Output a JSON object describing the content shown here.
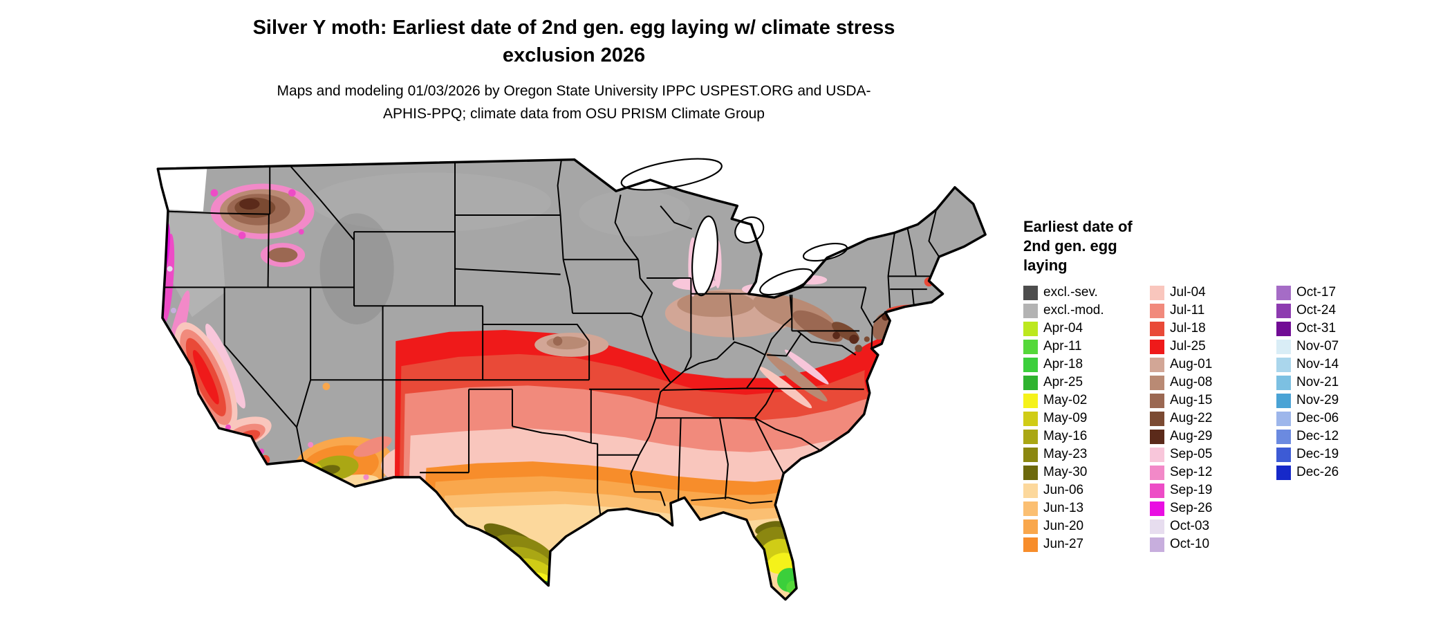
{
  "page": {
    "title": "Silver Y moth: Earliest date of 2nd gen. egg laying w/ climate stress exclusion 2026",
    "subtitle": "Maps and modeling 01/03/2026 by Oregon State University IPPC USPEST.ORG and USDA-APHIS-PPQ; climate data from OSU PRISM Climate Group"
  },
  "legend": {
    "title": "Earliest date of 2nd gen. egg laying",
    "columns": [
      [
        {
          "label": "excl.-sev.",
          "color": "excl_sev"
        },
        {
          "label": "excl.-mod.",
          "color": "excl_mod"
        },
        {
          "label": "Apr-04",
          "color": "apr04"
        },
        {
          "label": "Apr-11",
          "color": "apr11"
        },
        {
          "label": "Apr-18",
          "color": "apr18"
        },
        {
          "label": "Apr-25",
          "color": "apr25"
        },
        {
          "label": "May-02",
          "color": "may02"
        },
        {
          "label": "May-09",
          "color": "may09"
        },
        {
          "label": "May-16",
          "color": "may16"
        },
        {
          "label": "May-23",
          "color": "may23"
        },
        {
          "label": "May-30",
          "color": "may30"
        },
        {
          "label": "Jun-06",
          "color": "jun06"
        },
        {
          "label": "Jun-13",
          "color": "jun13"
        },
        {
          "label": "Jun-20",
          "color": "jun20"
        },
        {
          "label": "Jun-27",
          "color": "jun27"
        }
      ],
      [
        {
          "label": "Jul-04",
          "color": "jul04"
        },
        {
          "label": "Jul-11",
          "color": "jul11"
        },
        {
          "label": "Jul-18",
          "color": "jul18"
        },
        {
          "label": "Jul-25",
          "color": "jul25"
        },
        {
          "label": "Aug-01",
          "color": "aug01"
        },
        {
          "label": "Aug-08",
          "color": "aug08"
        },
        {
          "label": "Aug-15",
          "color": "aug15"
        },
        {
          "label": "Aug-22",
          "color": "aug22"
        },
        {
          "label": "Aug-29",
          "color": "aug29"
        },
        {
          "label": "Sep-05",
          "color": "sep05"
        },
        {
          "label": "Sep-12",
          "color": "sep12"
        },
        {
          "label": "Sep-19",
          "color": "sep19"
        },
        {
          "label": "Sep-26",
          "color": "sep26"
        },
        {
          "label": "Oct-03",
          "color": "oct03"
        },
        {
          "label": "Oct-10",
          "color": "oct10"
        }
      ],
      [
        {
          "label": "Oct-17",
          "color": "oct17"
        },
        {
          "label": "Oct-24",
          "color": "oct24"
        },
        {
          "label": "Oct-31",
          "color": "oct31"
        },
        {
          "label": "Nov-07",
          "color": "nov07"
        },
        {
          "label": "Nov-14",
          "color": "nov14"
        },
        {
          "label": "Nov-21",
          "color": "nov21"
        },
        {
          "label": "Nov-29",
          "color": "nov29"
        },
        {
          "label": "Dec-06",
          "color": "dec06"
        },
        {
          "label": "Dec-12",
          "color": "dec12"
        },
        {
          "label": "Dec-19",
          "color": "dec19"
        },
        {
          "label": "Dec-26",
          "color": "dec26"
        }
      ]
    ]
  },
  "colors": {
    "excl_sev": "#4d4d4d",
    "excl_mod": "#b3b3b3",
    "apr04": "#bce81e",
    "apr11": "#55d83a",
    "apr18": "#3bcf3b",
    "apr25": "#2fb32f",
    "may02": "#f5f21a",
    "may09": "#d0cc16",
    "may16": "#aaa714",
    "may23": "#8b8710",
    "may30": "#6d690c",
    "jun06": "#fcd89c",
    "jun13": "#fbbf72",
    "jun20": "#f9a74c",
    "jun27": "#f78d2b",
    "jul04": "#f9c6bd",
    "jul11": "#f18a7c",
    "jul18": "#e94a38",
    "jul25": "#ef1a1a",
    "aug01": "#d2a696",
    "aug08": "#b98a74",
    "aug15": "#9b6852",
    "aug22": "#7b4a32",
    "aug29": "#5b2a1a",
    "sep05": "#f8c6da",
    "sep12": "#f289c8",
    "sep19": "#ed4cc6",
    "sep26": "#e90ee2",
    "oct03": "#e7ddef",
    "oct10": "#c7aedd",
    "oct17": "#a56cc6",
    "oct24": "#8d3bb0",
    "oct31": "#710c95",
    "nov07": "#d9edf6",
    "nov14": "#aad6ec",
    "nov21": "#7cc0e2",
    "nov29": "#4aa3d5",
    "dec06": "#9db6eb",
    "dec12": "#6b8ae0",
    "dec19": "#3d5bd5",
    "dec26": "#1629c9",
    "map_base": "#a6a6a6",
    "water": "#ffffff",
    "no_data": "#ffffff",
    "border": "#000000"
  },
  "map": {
    "area": "Continental United States",
    "type": "choropleth of earliest 2nd generation egg-laying date",
    "pattern": {
      "north_and_mountain_west": "excluded (gray)",
      "south_florida": "Apr-04 to Apr-25",
      "central_florida_and_south_texas": "May-02 to May-30",
      "gulf_coast_and_deep_south": "Jun-06 to Jun-27",
      "mid_south_band_kansas_to_atlantic": "Jul-04 to Jul-25",
      "ohio_valley_appalachians_northeast": "Aug-01 to Aug-29 mottled",
      "columbia_basin_eastern_washington": "Aug-01 to Aug-29 with Sep fringe",
      "pacific_coast": "Sep-05 to Oct-10 with magenta coastal strips"
    }
  }
}
